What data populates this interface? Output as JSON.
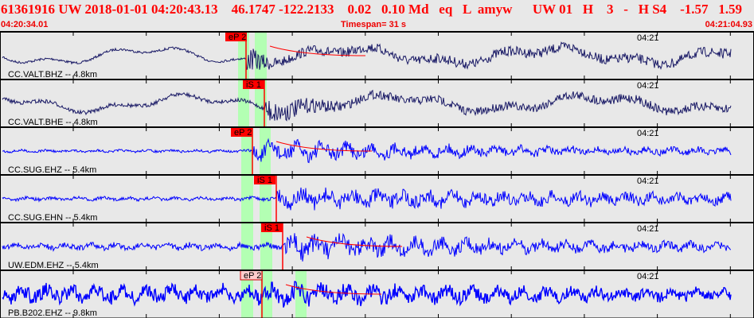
{
  "header": {
    "title": "61361916 UW 2018-01-01 04:20:43.13    46.1747 -122.2133    0.02   0.10 Md   eq   L  amyw      UW 01   H    3   -   H S4    -1.57   1.59",
    "start_time": "04:20:34.01",
    "timespan": "Timespan=  31 s",
    "end_time": "04:21:04.93"
  },
  "colors": {
    "header_text": "#ff0000",
    "pick": "#ff0000",
    "window": "#b3ffb3",
    "trace_bb": "#1a1a66",
    "trace_sp": "#0000ff"
  },
  "channels": [
    {
      "label": "CC.VALT.BHZ -- 4.8km",
      "time_label": "04:21",
      "pick": "eP 2",
      "color": "#1a1a66"
    },
    {
      "label": "CC.VALT.BHE -- 4.8km",
      "time_label": "04:21",
      "pick": "iS 1",
      "color": "#1a1a66"
    },
    {
      "label": "CC.SUG.EHZ -- 5.4km",
      "time_label": "04:21",
      "pick": "eP 2",
      "color": "#0000ff"
    },
    {
      "label": "CC.SUG.EHN -- 5.4km",
      "time_label": "04:21",
      "pick": "iS 1",
      "color": "#0000ff"
    },
    {
      "label": "UW.EDM.EHZ -- 5.4km",
      "time_label": "04:21",
      "pick": "iS 1",
      "color": "#0000ff"
    },
    {
      "label": "PB.B202.EHZ -- 9.8km",
      "time_label": "04:21",
      "pick": "eP 2",
      "color": "#0000ff"
    }
  ]
}
